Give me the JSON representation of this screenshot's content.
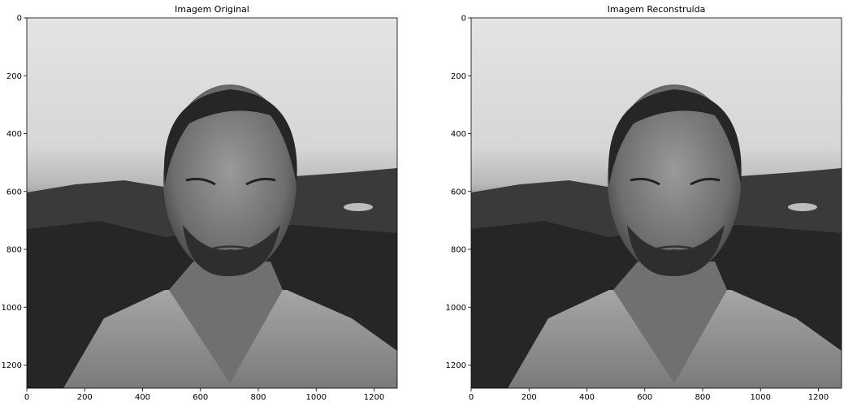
{
  "chart_data": [
    {
      "type": "image",
      "title": "Imagem Original",
      "xlim": [
        0,
        1280
      ],
      "ylim": [
        1280,
        0
      ],
      "xticks": [
        0,
        200,
        400,
        600,
        800,
        1000,
        1200
      ],
      "yticks": [
        0,
        200,
        400,
        600,
        800,
        1000,
        1200
      ]
    },
    {
      "type": "image",
      "title": "Imagem Reconstruída",
      "xlim": [
        0,
        1280
      ],
      "ylim": [
        1280,
        0
      ],
      "xticks": [
        0,
        200,
        400,
        600,
        800,
        1000,
        1200
      ],
      "yticks": [
        0,
        200,
        400,
        600,
        800,
        1000,
        1200
      ]
    }
  ]
}
